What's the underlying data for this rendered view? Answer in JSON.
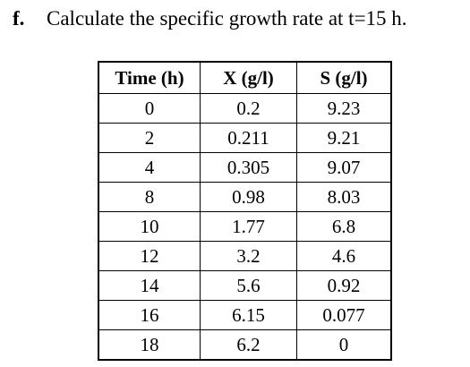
{
  "question": {
    "number": "f.",
    "text": "Calculate the specific growth rate at t=15 h."
  },
  "table": {
    "headers": [
      "Time (h)",
      "X (g/l)",
      "S (g/l)"
    ],
    "rows": [
      [
        "0",
        "0.2",
        "9.23"
      ],
      [
        "2",
        "0.211",
        "9.21"
      ],
      [
        "4",
        "0.305",
        "9.07"
      ],
      [
        "8",
        "0.98",
        "8.03"
      ],
      [
        "10",
        "1.77",
        "6.8"
      ],
      [
        "12",
        "3.2",
        "4.6"
      ],
      [
        "14",
        "5.6",
        "0.92"
      ],
      [
        "16",
        "6.15",
        "0.077"
      ],
      [
        "18",
        "6.2",
        "0"
      ]
    ]
  }
}
